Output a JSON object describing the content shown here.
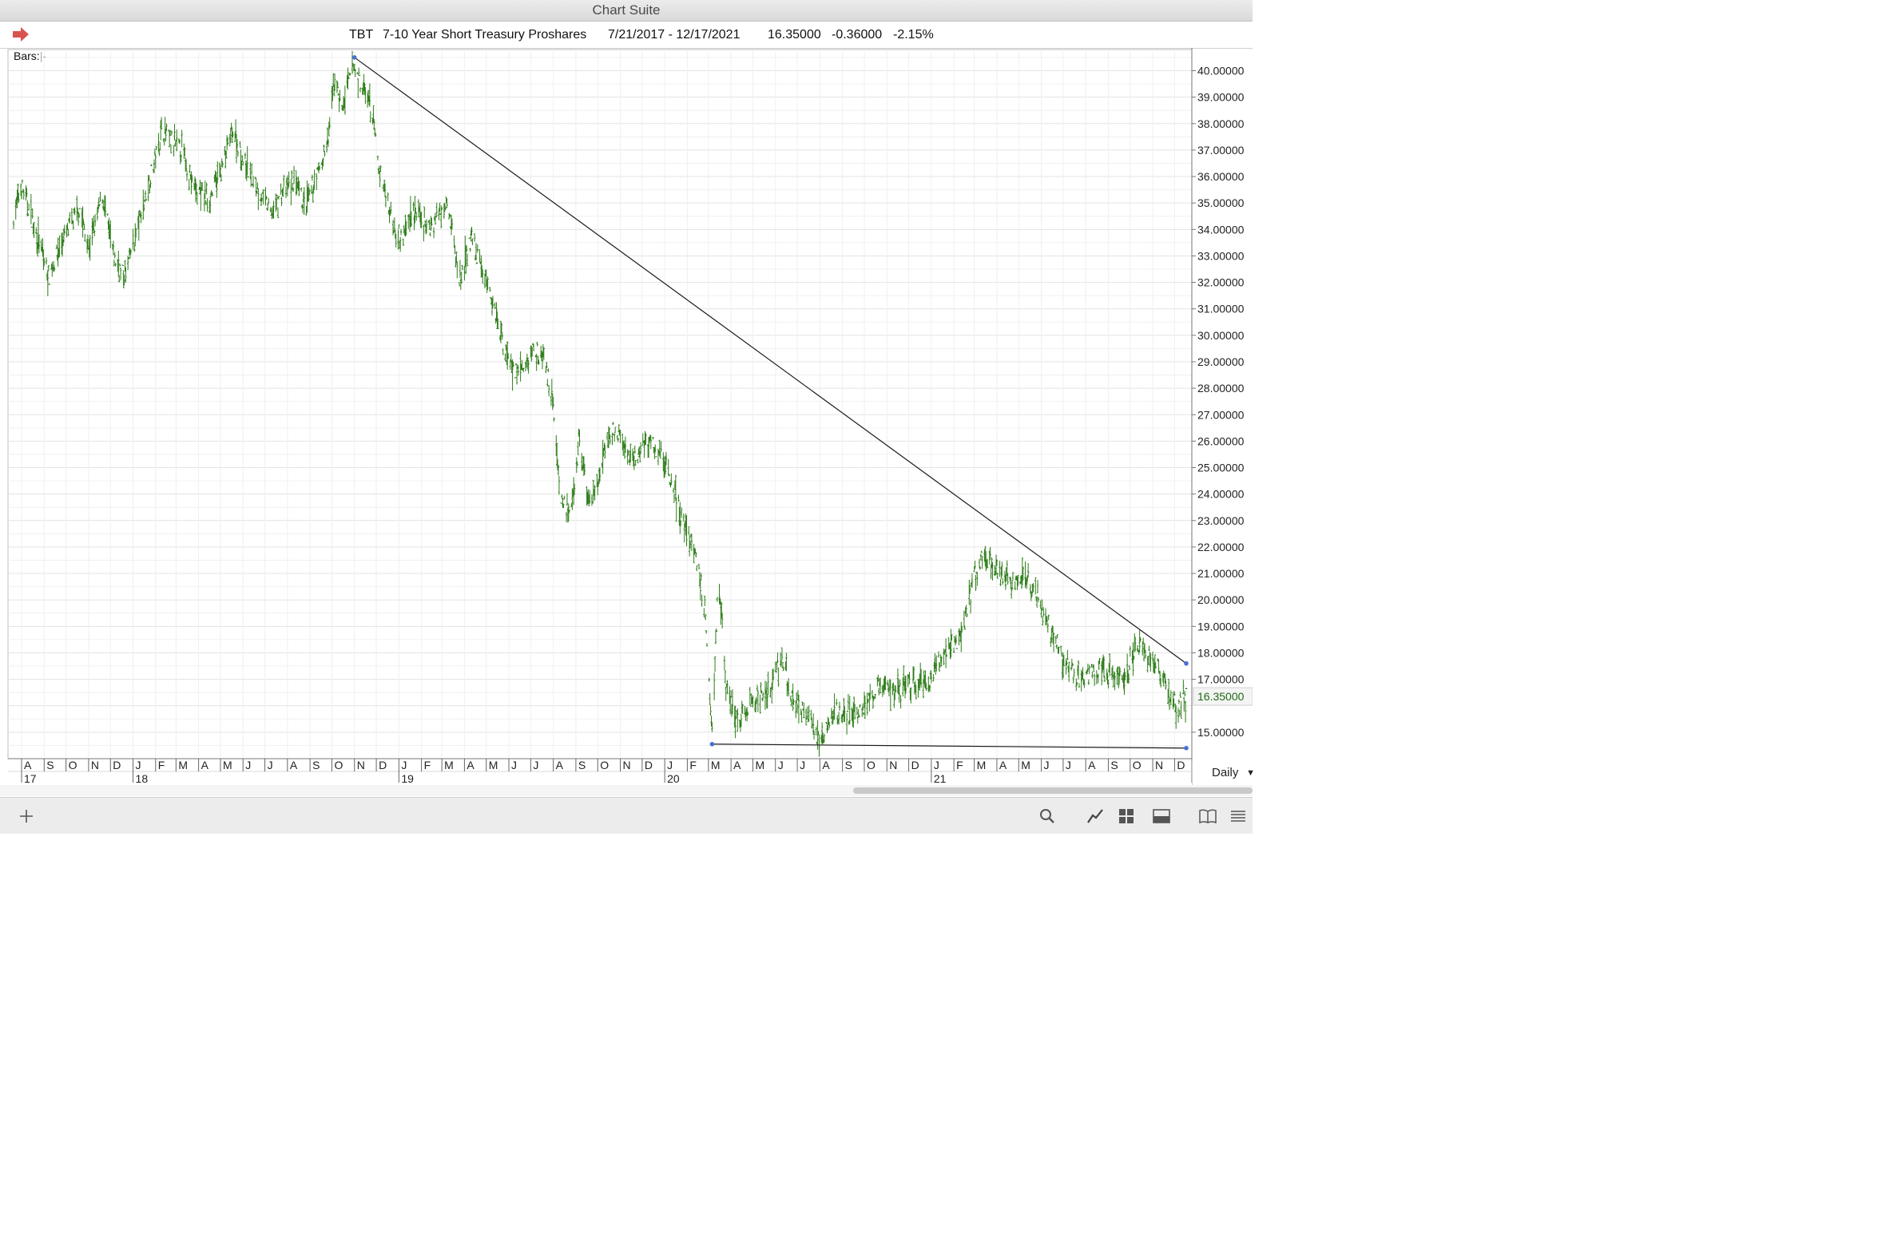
{
  "window": {
    "title": "Chart Suite"
  },
  "header": {
    "symbol": "TBT",
    "name": "7-10 Year Short Treasury Proshares",
    "date_range": "7/21/2017 - 12/17/2021",
    "last": "16.35000",
    "change": "-0.36000",
    "change_pct": "-2.15%",
    "arrow_color": "#d9534f"
  },
  "bars_label": "Bars:",
  "bars_cursor": "|-",
  "period": "Daily",
  "colors": {
    "bars": "#2e7d1a",
    "trendline": "#1a1a1a",
    "anchor": "#4a6fd6",
    "last_label": "#1e6b12"
  },
  "chart_data": {
    "type": "bar",
    "x_range": [
      "2017-07-21",
      "2021-12-17"
    ],
    "ylim": [
      14.0,
      40.8
    ],
    "y_ticks": [
      "40.00000",
      "39.00000",
      "38.00000",
      "37.00000",
      "36.00000",
      "35.00000",
      "34.00000",
      "33.00000",
      "32.00000",
      "31.00000",
      "30.00000",
      "29.00000",
      "28.00000",
      "27.00000",
      "26.00000",
      "25.00000",
      "24.00000",
      "23.00000",
      "22.00000",
      "21.00000",
      "20.00000",
      "19.00000",
      "18.00000",
      "17.00000",
      "15.00000"
    ],
    "last_price_label": "16.35000",
    "month_labels": [
      "A",
      "S",
      "O",
      "N",
      "D",
      "J",
      "F",
      "M",
      "A",
      "M",
      "J",
      "J",
      "A",
      "S",
      "O",
      "N",
      "D",
      "J",
      "F",
      "M",
      "A",
      "M",
      "J",
      "J",
      "A",
      "S",
      "O",
      "N",
      "D",
      "J",
      "F",
      "M",
      "A",
      "M",
      "J",
      "J",
      "A",
      "S",
      "O",
      "N",
      "D",
      "J",
      "F",
      "M",
      "A",
      "M",
      "J",
      "J",
      "A",
      "S",
      "O",
      "N",
      "D"
    ],
    "year_labels": [
      "17",
      "18",
      "19",
      "20",
      "21"
    ],
    "price_path": [
      [
        "2017-07-21",
        34.5
      ],
      [
        "2017-08-01",
        35.6
      ],
      [
        "2017-08-20",
        34.0
      ],
      [
        "2017-09-07",
        32.2
      ],
      [
        "2017-09-25",
        33.5
      ],
      [
        "2017-10-20",
        34.8
      ],
      [
        "2017-11-01",
        33.2
      ],
      [
        "2017-11-20",
        35.3
      ],
      [
        "2017-12-05",
        33.0
      ],
      [
        "2017-12-20",
        32.2
      ],
      [
        "2018-01-05",
        33.8
      ],
      [
        "2018-01-25",
        36.0
      ],
      [
        "2018-02-10",
        37.8
      ],
      [
        "2018-02-25",
        37.2
      ],
      [
        "2018-03-10",
        37.0
      ],
      [
        "2018-03-25",
        35.6
      ],
      [
        "2018-04-15",
        35.1
      ],
      [
        "2018-05-05",
        36.5
      ],
      [
        "2018-05-18",
        37.8
      ],
      [
        "2018-06-01",
        36.6
      ],
      [
        "2018-06-20",
        35.6
      ],
      [
        "2018-07-10",
        34.6
      ],
      [
        "2018-07-25",
        35.4
      ],
      [
        "2018-08-10",
        35.8
      ],
      [
        "2018-08-25",
        34.8
      ],
      [
        "2018-09-10",
        36.0
      ],
      [
        "2018-09-25",
        37.2
      ],
      [
        "2018-10-05",
        39.8
      ],
      [
        "2018-10-15",
        38.5
      ],
      [
        "2018-10-30",
        40.2
      ],
      [
        "2018-11-08",
        39.6
      ],
      [
        "2018-11-25",
        38.5
      ],
      [
        "2018-12-05",
        36.2
      ],
      [
        "2018-12-25",
        34.2
      ],
      [
        "2019-01-05",
        33.6
      ],
      [
        "2019-01-20",
        34.8
      ],
      [
        "2019-02-10",
        34.0
      ],
      [
        "2019-02-25",
        34.6
      ],
      [
        "2019-03-08",
        35.3
      ],
      [
        "2019-03-25",
        32.0
      ],
      [
        "2019-04-10",
        33.6
      ],
      [
        "2019-04-28",
        32.3
      ],
      [
        "2019-05-15",
        30.8
      ],
      [
        "2019-05-25",
        29.6
      ],
      [
        "2019-06-10",
        28.6
      ],
      [
        "2019-06-25",
        28.8
      ],
      [
        "2019-07-05",
        29.6
      ],
      [
        "2019-07-20",
        29.0
      ],
      [
        "2019-08-01",
        27.5
      ],
      [
        "2019-08-10",
        24.0
      ],
      [
        "2019-08-25",
        23.0
      ],
      [
        "2019-09-05",
        26.0
      ],
      [
        "2019-09-20",
        23.5
      ],
      [
        "2019-10-05",
        24.8
      ],
      [
        "2019-10-20",
        26.5
      ],
      [
        "2019-11-05",
        25.8
      ],
      [
        "2019-11-20",
        25.2
      ],
      [
        "2019-12-05",
        26.0
      ],
      [
        "2019-12-25",
        25.6
      ],
      [
        "2020-01-10",
        24.6
      ],
      [
        "2020-01-25",
        23.0
      ],
      [
        "2020-02-10",
        22.0
      ],
      [
        "2020-02-25",
        19.8
      ],
      [
        "2020-03-06",
        15.2
      ],
      [
        "2020-03-15",
        21.0
      ],
      [
        "2020-03-25",
        16.8
      ],
      [
        "2020-04-10",
        15.4
      ],
      [
        "2020-04-25",
        15.8
      ],
      [
        "2020-05-10",
        16.4
      ],
      [
        "2020-05-25",
        16.6
      ],
      [
        "2020-06-08",
        17.8
      ],
      [
        "2020-06-25",
        16.2
      ],
      [
        "2020-07-15",
        15.6
      ],
      [
        "2020-08-03",
        14.6
      ],
      [
        "2020-08-20",
        15.8
      ],
      [
        "2020-09-10",
        15.6
      ],
      [
        "2020-10-01",
        16.0
      ],
      [
        "2020-10-25",
        16.8
      ],
      [
        "2020-11-15",
        16.6
      ],
      [
        "2020-12-05",
        16.8
      ],
      [
        "2020-12-28",
        16.9
      ],
      [
        "2021-01-15",
        17.8
      ],
      [
        "2021-02-10",
        18.6
      ],
      [
        "2021-02-28",
        20.8
      ],
      [
        "2021-03-15",
        21.8
      ],
      [
        "2021-03-30",
        21.2
      ],
      [
        "2021-04-20",
        20.6
      ],
      [
        "2021-05-10",
        21.0
      ],
      [
        "2021-05-25",
        20.2
      ],
      [
        "2021-06-15",
        18.8
      ],
      [
        "2021-07-05",
        17.6
      ],
      [
        "2021-07-25",
        17.0
      ],
      [
        "2021-08-15",
        17.4
      ],
      [
        "2021-09-05",
        17.2
      ],
      [
        "2021-09-25",
        17.0
      ],
      [
        "2021-10-10",
        18.4
      ],
      [
        "2021-10-25",
        17.9
      ],
      [
        "2021-11-08",
        17.6
      ],
      [
        "2021-11-25",
        16.4
      ],
      [
        "2021-12-05",
        16.0
      ],
      [
        "2021-12-17",
        16.35
      ]
    ],
    "trendlines": [
      {
        "start": [
          "2018-11-01",
          40.5
        ],
        "end": [
          "2021-12-17",
          17.6
        ]
      },
      {
        "start": [
          "2020-03-06",
          14.55
        ],
        "end": [
          "2021-12-17",
          14.4
        ]
      }
    ],
    "grid": true
  }
}
